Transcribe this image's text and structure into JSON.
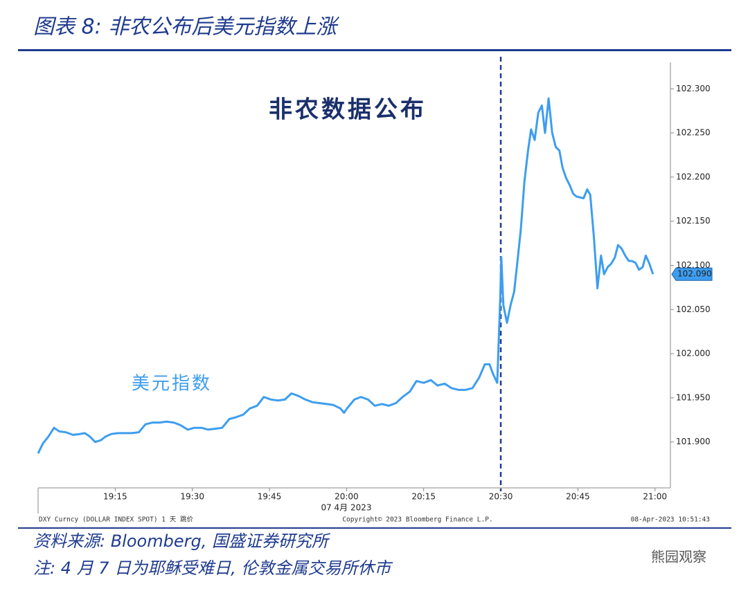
{
  "title": "图表 8:  非农公布后美元指数上涨",
  "source": "资料来源:  Bloomberg, 国盛证券研究所",
  "note": "注:  4 月 7 日为耶稣受难日, 伦敦金属交易所休市",
  "watermark": "熊园观察",
  "chart_data": {
    "type": "line",
    "annotations": [
      "非农数据公布",
      "美元指数"
    ],
    "date_label": "07 4月 2023",
    "footer_left": "DXY Curncy (DOLLAR INDEX SPOT) 1 天  跳价",
    "footer_center": "Copyright© 2023 Bloomberg Finance L.P.",
    "footer_right": "08-Apr-2023 10:51:43",
    "last_value_label": "102.090",
    "vline_x": 90,
    "x": [
      0,
      0.9,
      2.0,
      3.1,
      4.1,
      5.4,
      6.8,
      8.1,
      9.1,
      10.1,
      11.1,
      12.2,
      13.1,
      14.2,
      15.5,
      16.9,
      18.2,
      19.6,
      20.9,
      22.3,
      23.6,
      25.0,
      26.4,
      27.7,
      29.1,
      30.4,
      31.8,
      33.1,
      34.5,
      35.8,
      37.2,
      38.5,
      39.9,
      41.2,
      42.6,
      43.9,
      45.3,
      46.6,
      48.0,
      49.3,
      50.7,
      52.0,
      53.4,
      54.7,
      56.1,
      57.4,
      58.8,
      59.5,
      60.1,
      61.5,
      62.8,
      64.2,
      65.5,
      66.9,
      68.2,
      69.6,
      70.9,
      72.3,
      73.6,
      75.0,
      76.4,
      77.7,
      79.1,
      80.4,
      81.8,
      83.1,
      84.5,
      85.8,
      86.9,
      87.8,
      88.5,
      89.3,
      89.9,
      90.1,
      90.5,
      91.2,
      91.9,
      92.6,
      93.2,
      93.9,
      94.6,
      95.3,
      95.9,
      96.6,
      97.3,
      98.0,
      98.6,
      99.3,
      100.0,
      100.7,
      101.4,
      102.0,
      102.7,
      103.4,
      104.1,
      104.7,
      106.1,
      106.8,
      107.4,
      108.1,
      108.8,
      109.5,
      110.1,
      110.8,
      111.5,
      112.2,
      112.8,
      113.5,
      114.2,
      114.9,
      115.5,
      116.2,
      116.9,
      117.6,
      118.2,
      118.9,
      119.6
    ],
    "series": [
      {
        "name": "美元指数",
        "color": "#3d9df0",
        "values": [
          101.887,
          101.898,
          101.906,
          101.916,
          101.912,
          101.911,
          101.908,
          101.909,
          101.91,
          101.906,
          101.9,
          101.902,
          101.906,
          101.909,
          101.91,
          101.91,
          101.91,
          101.911,
          101.92,
          101.922,
          101.922,
          101.923,
          101.922,
          101.919,
          101.914,
          101.916,
          101.916,
          101.914,
          101.915,
          101.916,
          101.926,
          101.928,
          101.931,
          101.938,
          101.941,
          101.951,
          101.948,
          101.947,
          101.948,
          101.955,
          101.952,
          101.948,
          101.945,
          101.944,
          101.943,
          101.942,
          101.938,
          101.933,
          101.938,
          101.948,
          101.951,
          101.948,
          101.941,
          101.943,
          101.941,
          101.944,
          101.951,
          101.957,
          101.969,
          101.967,
          101.97,
          101.964,
          101.966,
          101.961,
          101.959,
          101.959,
          101.961,
          101.973,
          101.988,
          101.988,
          101.977,
          101.967,
          102.063,
          102.109,
          102.055,
          102.035,
          102.055,
          102.07,
          102.102,
          102.141,
          102.195,
          102.23,
          102.254,
          102.242,
          102.273,
          102.281,
          102.25,
          102.289,
          102.25,
          102.234,
          102.23,
          102.211,
          102.199,
          102.191,
          102.181,
          102.178,
          102.176,
          102.186,
          102.18,
          102.133,
          102.074,
          102.111,
          102.09,
          102.098,
          102.102,
          102.109,
          102.123,
          102.119,
          102.111,
          102.105,
          102.105,
          102.103,
          102.095,
          102.098,
          102.111,
          102.102,
          102.09
        ]
      }
    ],
    "xlim": [
      0,
      123
    ],
    "xticks": [
      {
        "value": 15,
        "label": "19:15"
      },
      {
        "value": 30,
        "label": "19:30"
      },
      {
        "value": 45,
        "label": "19:45"
      },
      {
        "value": 60,
        "label": "20:00"
      },
      {
        "value": 75,
        "label": "20:15"
      },
      {
        "value": 90,
        "label": "20:30"
      },
      {
        "value": 105,
        "label": "20:45"
      },
      {
        "value": 120,
        "label": "21:00"
      }
    ],
    "ylim": [
      101.848,
      102.33
    ],
    "yticks": [
      {
        "value": 101.9,
        "label": "101.900"
      },
      {
        "value": 101.95,
        "label": "101.950"
      },
      {
        "value": 102.0,
        "label": "102.000"
      },
      {
        "value": 102.05,
        "label": "102.050"
      },
      {
        "value": 102.1,
        "label": "102.100"
      },
      {
        "value": 102.15,
        "label": "102.150"
      },
      {
        "value": 102.2,
        "label": "102.200"
      },
      {
        "value": 102.25,
        "label": "102.250"
      },
      {
        "value": 102.3,
        "label": "102.300"
      }
    ]
  }
}
